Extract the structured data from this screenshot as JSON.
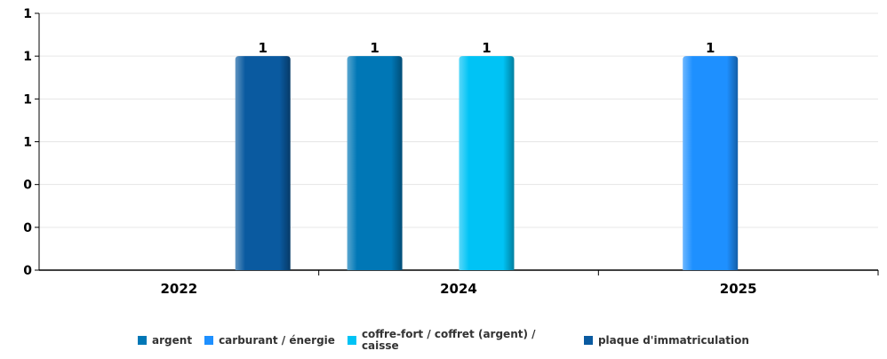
{
  "chart_data": {
    "type": "bar",
    "categories": [
      "2022",
      "2024",
      "2025"
    ],
    "y_tick_labels": [
      "0",
      "0",
      "0",
      "1",
      "1",
      "1",
      "1"
    ],
    "ylim": [
      0,
      1.2
    ],
    "grid": true,
    "legend_position": "bottom",
    "series": [
      {
        "name": "argent",
        "color": "#0077b6",
        "values": [
          null,
          1,
          null
        ]
      },
      {
        "name": "carburant / énergie",
        "color": "#1e90ff",
        "values": [
          null,
          null,
          1
        ]
      },
      {
        "name": "coffre-fort / coffret (argent) / caisse",
        "color": "#00c3f5",
        "values": [
          null,
          1,
          null
        ]
      },
      {
        "name": "plaque d'immatriculation",
        "color": "#0a5aa0",
        "values": [
          1,
          null,
          null
        ]
      }
    ],
    "data_labels": [
      "1",
      "1",
      "1",
      "1"
    ]
  }
}
